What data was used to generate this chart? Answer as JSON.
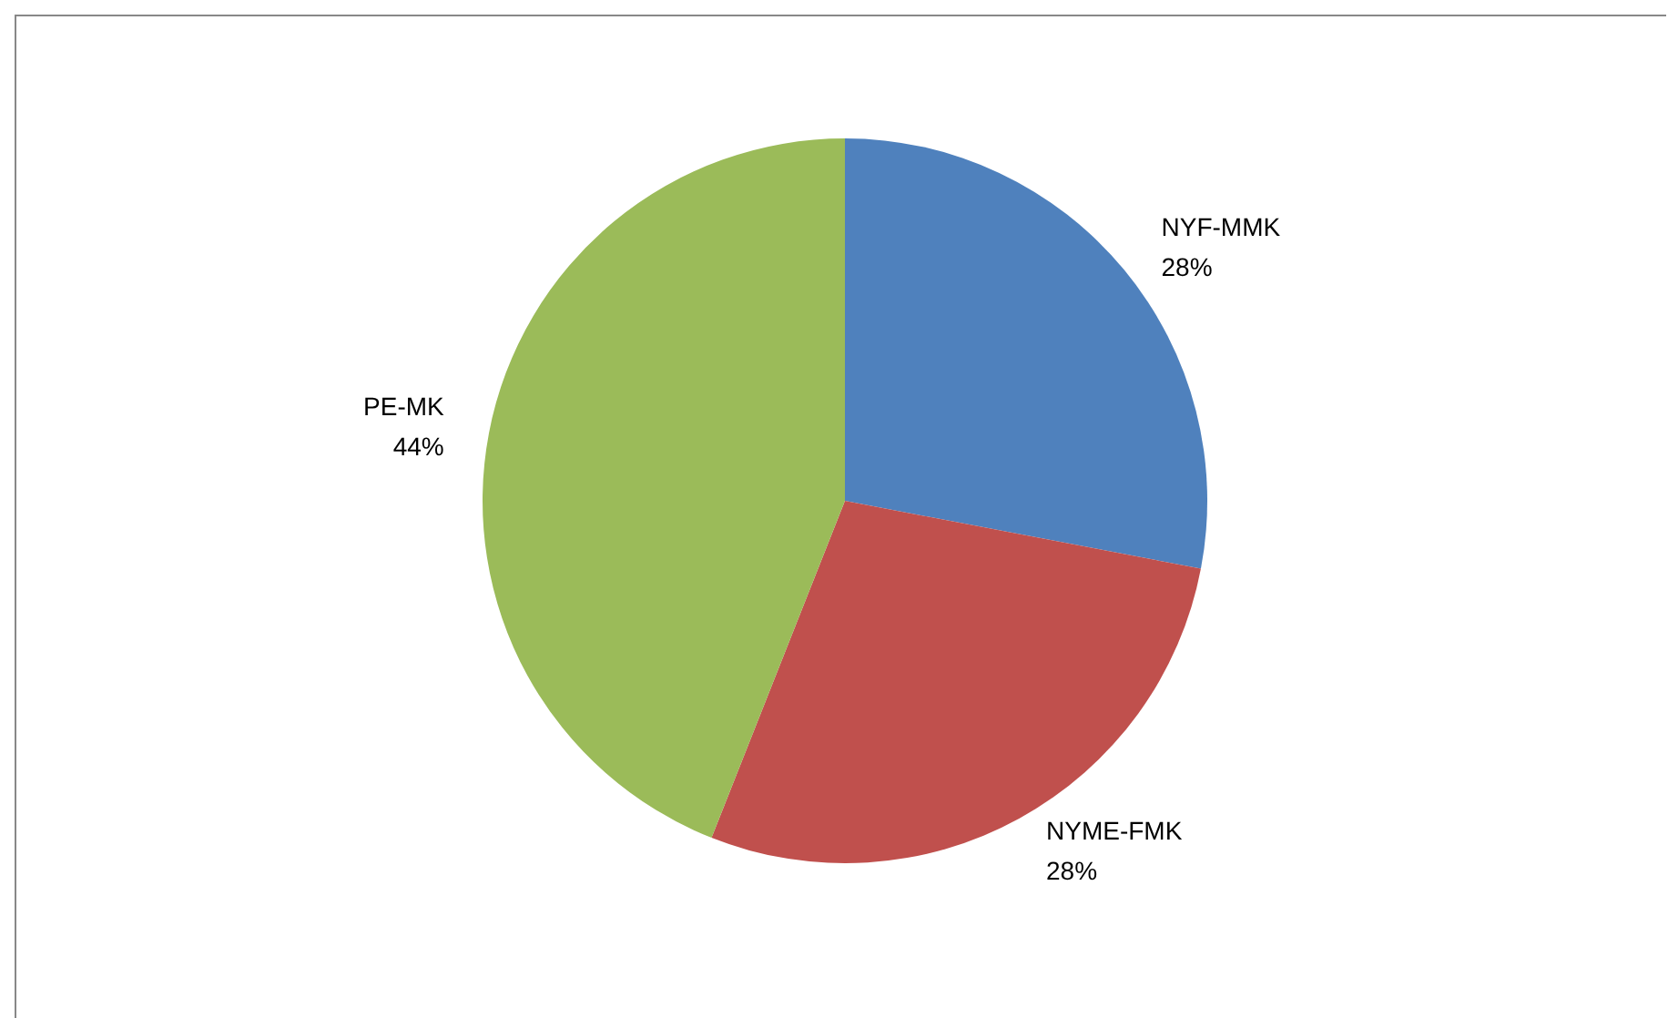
{
  "chart_data": {
    "type": "pie",
    "categories": [
      "NYF-MMK",
      "NYME-FMK",
      "PE-MK"
    ],
    "values": [
      28,
      28,
      44
    ],
    "colors": [
      "#4f81bd",
      "#c0504d",
      "#9bbb59"
    ],
    "value_labels": [
      "28%",
      "28%",
      "44%"
    ],
    "legend": false
  }
}
